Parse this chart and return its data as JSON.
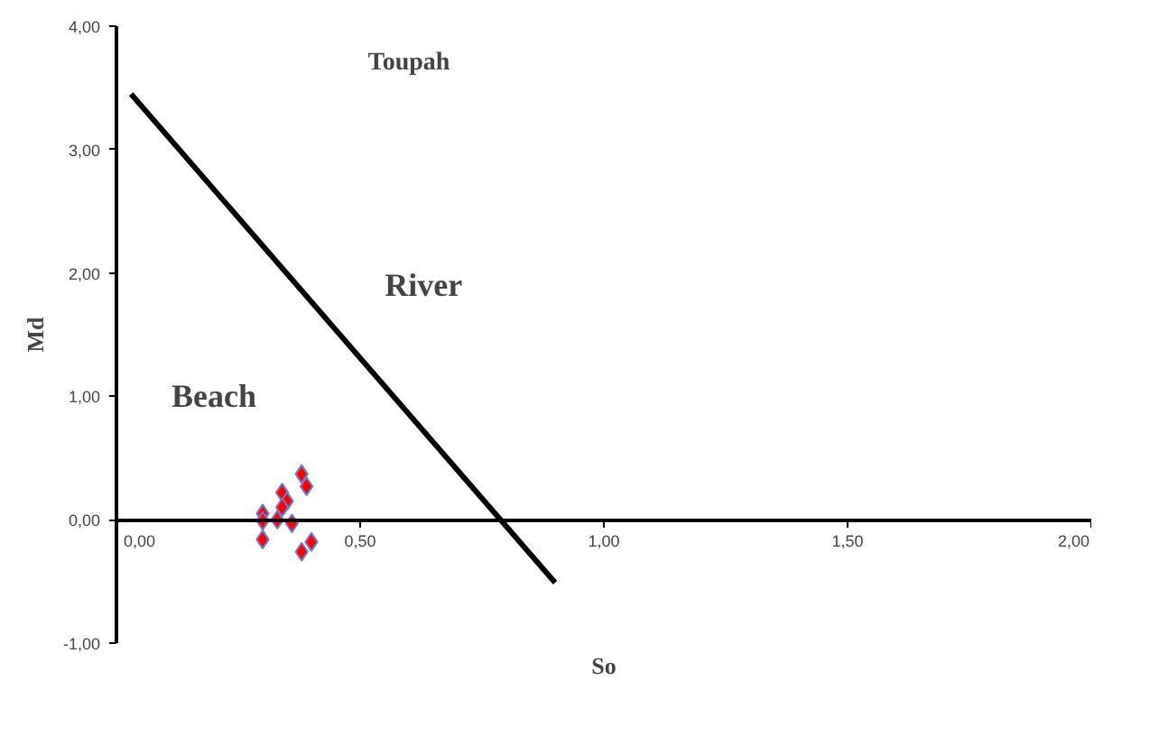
{
  "chart_data": {
    "type": "scatter",
    "xlabel": "So",
    "ylabel": "Md",
    "xlim": [
      0,
      2
    ],
    "ylim": [
      -1,
      4
    ],
    "xticks": [
      {
        "value": 0,
        "label": "0,00"
      },
      {
        "value": 0.5,
        "label": "0,50"
      },
      {
        "value": 1,
        "label": "1,00"
      },
      {
        "value": 1.5,
        "label": "1,50"
      },
      {
        "value": 2,
        "label": "2,00"
      }
    ],
    "yticks": [
      {
        "value": -1,
        "label": "-1,00"
      },
      {
        "value": 0,
        "label": "0,00"
      },
      {
        "value": 1,
        "label": "1,00"
      },
      {
        "value": 2,
        "label": "2,00"
      },
      {
        "value": 3,
        "label": "3,00"
      },
      {
        "value": 4,
        "label": "4,00"
      }
    ],
    "grid": false,
    "marker": "diamond",
    "series": [
      {
        "color": "#ff0000",
        "x": [
          0.38,
          0.39,
          0.34,
          0.35,
          0.34,
          0.3,
          0.3,
          0.33,
          0.36,
          0.3,
          0.4,
          0.38
        ],
        "values": [
          0.37,
          0.27,
          0.22,
          0.15,
          0.1,
          0.05,
          -0.01,
          0.0,
          -0.03,
          -0.16,
          -0.18,
          -0.26
        ]
      },
      {
        "type": "line",
        "marker": "none",
        "color": "#000000",
        "x": [
          0.03,
          0.9
        ],
        "values": [
          3.45,
          -0.51
        ]
      }
    ],
    "annotations": [
      "Toupah",
      "River",
      "Beach"
    ]
  }
}
